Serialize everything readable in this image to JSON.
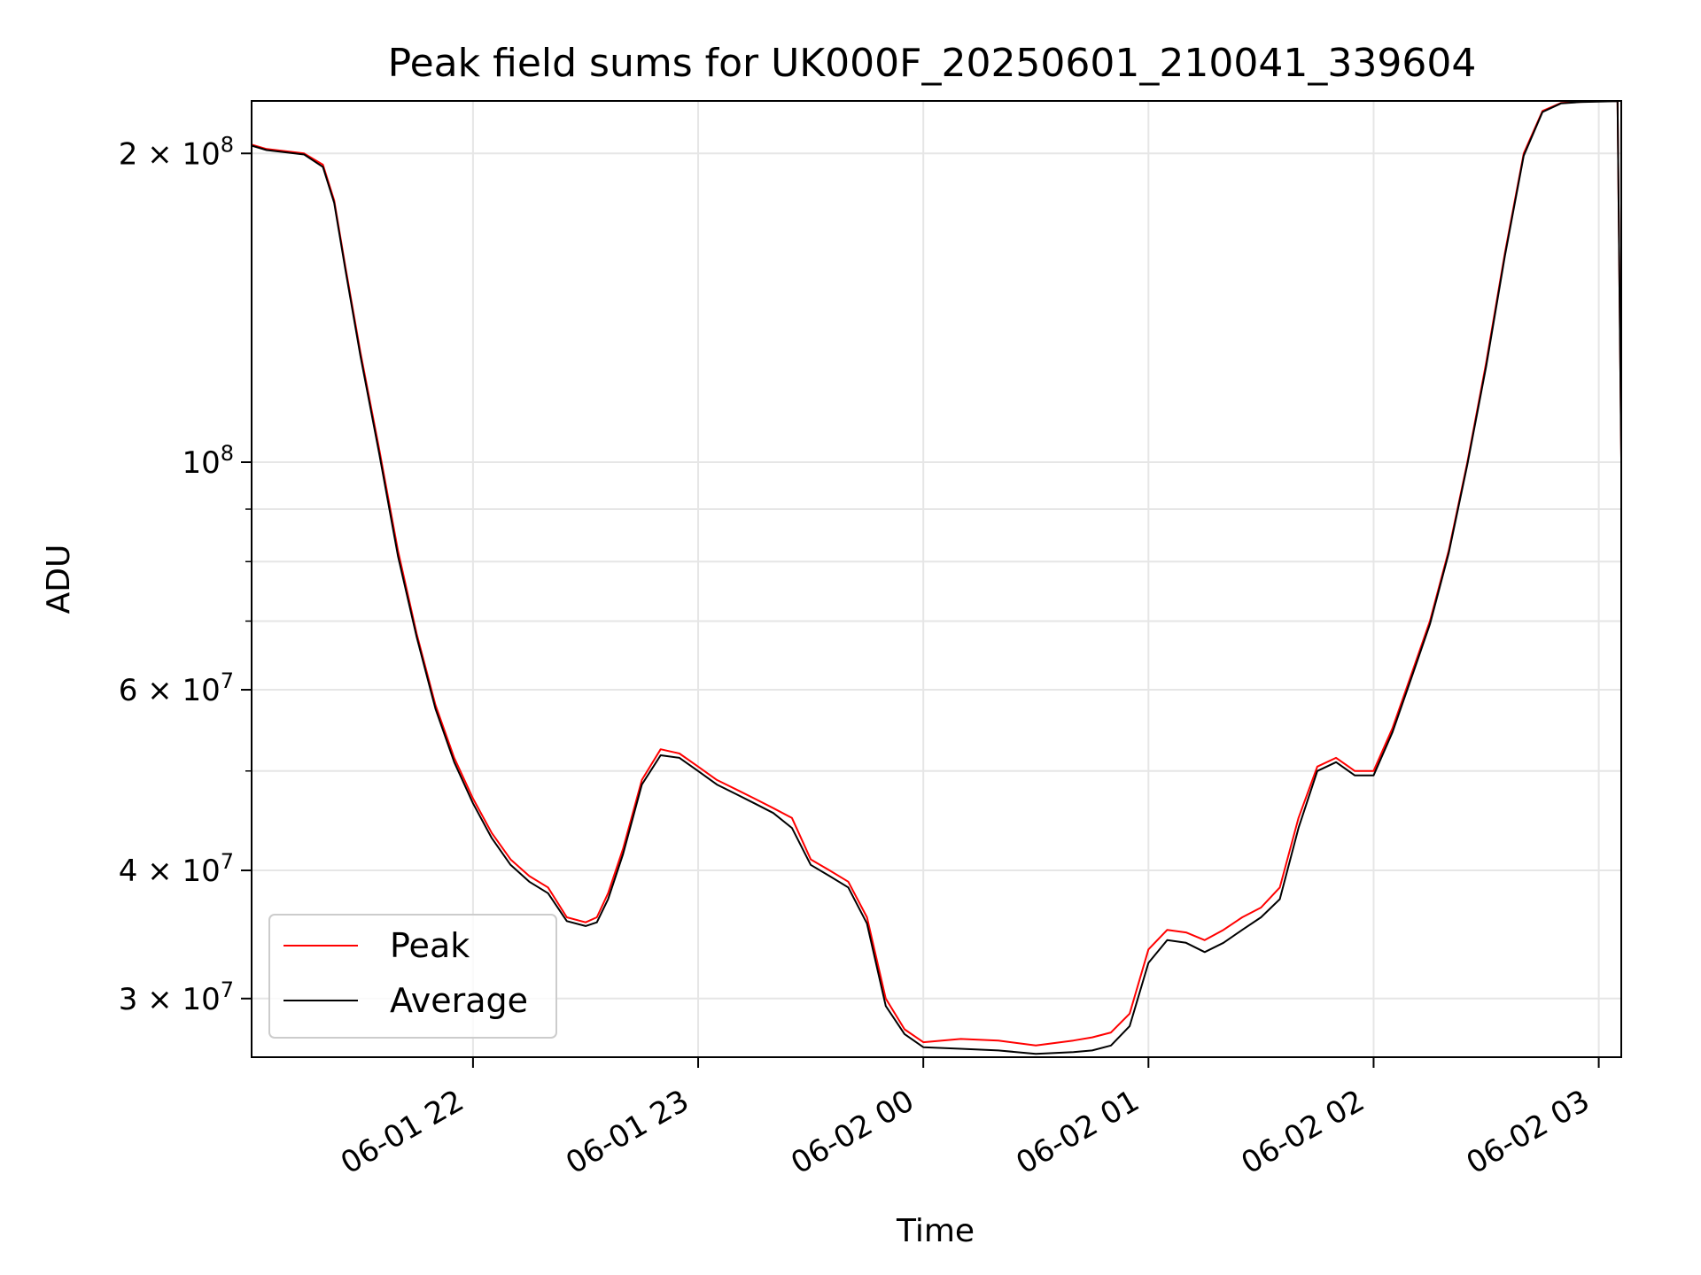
{
  "chart_data": {
    "type": "line",
    "title": "Peak field sums for UK000F_20250601_210041_339604",
    "xlabel": "Time",
    "ylabel": "ADU",
    "yscale": "log",
    "grid": true,
    "legend_position": "lower-left",
    "xlim": [
      "2025-06-01 21:01",
      "2025-06-02 03:06"
    ],
    "ylim": [
      26300000,
      225000000
    ],
    "x_ticks": [
      {
        "value": "2025-06-01 22:00",
        "label": "06-01 22"
      },
      {
        "value": "2025-06-01 23:00",
        "label": "06-01 23"
      },
      {
        "value": "2025-06-02 00:00",
        "label": "06-02 00"
      },
      {
        "value": "2025-06-02 01:00",
        "label": "06-02 01"
      },
      {
        "value": "2025-06-02 02:00",
        "label": "06-02 02"
      },
      {
        "value": "2025-06-02 03:00",
        "label": "06-02 03"
      }
    ],
    "y_ticks": [
      {
        "value": 200000000,
        "base": "2 × 10",
        "exp": "8"
      },
      {
        "value": 100000000,
        "base": "10",
        "exp": "8"
      },
      {
        "value": 60000000,
        "base": "6 × 10",
        "exp": "7"
      },
      {
        "value": 40000000,
        "base": "4 × 10",
        "exp": "7"
      },
      {
        "value": 30000000,
        "base": "3 × 10",
        "exp": "7"
      }
    ],
    "y_minor_ticks": [
      50000000,
      70000000,
      80000000,
      90000000
    ],
    "series": [
      {
        "name": "Peak",
        "color": "#ff0000",
        "x": [
          "2025-06-01 21:01",
          "2025-06-01 21:05",
          "2025-06-01 21:10",
          "2025-06-01 21:15",
          "2025-06-01 21:20",
          "2025-06-01 21:23",
          "2025-06-01 21:26",
          "2025-06-01 21:30",
          "2025-06-01 21:35",
          "2025-06-01 21:40",
          "2025-06-01 21:45",
          "2025-06-01 21:50",
          "2025-06-01 21:55",
          "2025-06-01 22:00",
          "2025-06-01 22:05",
          "2025-06-01 22:10",
          "2025-06-01 22:15",
          "2025-06-01 22:20",
          "2025-06-01 22:25",
          "2025-06-01 22:30",
          "2025-06-01 22:33",
          "2025-06-01 22:36",
          "2025-06-01 22:40",
          "2025-06-01 22:45",
          "2025-06-01 22:50",
          "2025-06-01 22:55",
          "2025-06-01 23:00",
          "2025-06-01 23:05",
          "2025-06-01 23:10",
          "2025-06-01 23:15",
          "2025-06-01 23:20",
          "2025-06-01 23:25",
          "2025-06-01 23:30",
          "2025-06-01 23:35",
          "2025-06-01 23:40",
          "2025-06-01 23:45",
          "2025-06-01 23:50",
          "2025-06-01 23:55",
          "2025-06-02 00:00",
          "2025-06-02 00:10",
          "2025-06-02 00:20",
          "2025-06-02 00:30",
          "2025-06-02 00:40",
          "2025-06-02 00:45",
          "2025-06-02 00:50",
          "2025-06-02 00:55",
          "2025-06-02 01:00",
          "2025-06-02 01:05",
          "2025-06-02 01:10",
          "2025-06-02 01:15",
          "2025-06-02 01:20",
          "2025-06-02 01:25",
          "2025-06-02 01:30",
          "2025-06-02 01:35",
          "2025-06-02 01:40",
          "2025-06-02 01:45",
          "2025-06-02 01:50",
          "2025-06-02 01:55",
          "2025-06-02 02:00",
          "2025-06-02 02:05",
          "2025-06-02 02:10",
          "2025-06-02 02:15",
          "2025-06-02 02:20",
          "2025-06-02 02:25",
          "2025-06-02 02:30",
          "2025-06-02 02:35",
          "2025-06-02 02:40",
          "2025-06-02 02:45",
          "2025-06-02 02:50",
          "2025-06-02 02:55",
          "2025-06-02 03:00",
          "2025-06-02 03:05",
          "2025-06-02 03:06"
        ],
        "values": [
          204000000,
          202000000,
          201000000,
          200000000,
          195000000,
          180000000,
          155000000,
          128000000,
          103000000,
          82000000,
          68000000,
          58000000,
          51500000,
          47000000,
          43500000,
          41000000,
          39500000,
          38500000,
          36000000,
          35600000,
          36000000,
          38000000,
          42000000,
          49000000,
          52500000,
          52000000,
          50500000,
          49000000,
          48000000,
          47000000,
          46000000,
          45000000,
          41000000,
          40000000,
          39000000,
          36000000,
          30000000,
          28000000,
          27200000,
          27400000,
          27300000,
          27000000,
          27300000,
          27500000,
          27800000,
          29000000,
          33500000,
          35000000,
          34800000,
          34200000,
          35000000,
          36000000,
          36800000,
          38500000,
          45000000,
          50500000,
          51500000,
          50000000,
          50000000,
          55000000,
          62000000,
          70000000,
          82000000,
          100000000,
          125000000,
          160000000,
          200000000,
          220000000,
          224000000,
          224500000,
          224800000,
          225000000,
          101000000
        ]
      },
      {
        "name": "Average",
        "color": "#000000",
        "x": [
          "2025-06-01 21:01",
          "2025-06-01 21:05",
          "2025-06-01 21:10",
          "2025-06-01 21:15",
          "2025-06-01 21:20",
          "2025-06-01 21:23",
          "2025-06-01 21:26",
          "2025-06-01 21:30",
          "2025-06-01 21:35",
          "2025-06-01 21:40",
          "2025-06-01 21:45",
          "2025-06-01 21:50",
          "2025-06-01 21:55",
          "2025-06-01 22:00",
          "2025-06-01 22:05",
          "2025-06-01 22:10",
          "2025-06-01 22:15",
          "2025-06-01 22:20",
          "2025-06-01 22:25",
          "2025-06-01 22:30",
          "2025-06-01 22:33",
          "2025-06-01 22:36",
          "2025-06-01 22:40",
          "2025-06-01 22:45",
          "2025-06-01 22:50",
          "2025-06-01 22:55",
          "2025-06-01 23:00",
          "2025-06-01 23:05",
          "2025-06-01 23:10",
          "2025-06-01 23:15",
          "2025-06-01 23:20",
          "2025-06-01 23:25",
          "2025-06-01 23:30",
          "2025-06-01 23:35",
          "2025-06-01 23:40",
          "2025-06-01 23:45",
          "2025-06-01 23:50",
          "2025-06-01 23:55",
          "2025-06-02 00:00",
          "2025-06-02 00:10",
          "2025-06-02 00:20",
          "2025-06-02 00:30",
          "2025-06-02 00:40",
          "2025-06-02 00:45",
          "2025-06-02 00:50",
          "2025-06-02 00:55",
          "2025-06-02 01:00",
          "2025-06-02 01:05",
          "2025-06-02 01:10",
          "2025-06-02 01:15",
          "2025-06-02 01:20",
          "2025-06-02 01:25",
          "2025-06-02 01:30",
          "2025-06-02 01:35",
          "2025-06-02 01:40",
          "2025-06-02 01:45",
          "2025-06-02 01:50",
          "2025-06-02 01:55",
          "2025-06-02 02:00",
          "2025-06-02 02:05",
          "2025-06-02 02:10",
          "2025-06-02 02:15",
          "2025-06-02 02:20",
          "2025-06-02 02:25",
          "2025-06-02 02:30",
          "2025-06-02 02:35",
          "2025-06-02 02:40",
          "2025-06-02 02:45",
          "2025-06-02 02:50",
          "2025-06-02 02:55",
          "2025-06-02 03:00",
          "2025-06-02 03:05",
          "2025-06-02 03:06"
        ],
        "values": [
          203500000,
          201500000,
          200500000,
          199500000,
          194000000,
          179000000,
          154000000,
          127000000,
          102000000,
          81000000,
          67500000,
          57500000,
          51000000,
          46500000,
          43000000,
          40500000,
          39000000,
          38000000,
          35700000,
          35300000,
          35600000,
          37500000,
          41500000,
          48500000,
          51800000,
          51500000,
          50000000,
          48500000,
          47500000,
          46500000,
          45500000,
          44000000,
          40500000,
          39500000,
          38500000,
          35500000,
          29500000,
          27700000,
          26900000,
          26800000,
          26700000,
          26500000,
          26600000,
          26700000,
          27000000,
          28200000,
          32500000,
          34200000,
          34000000,
          33300000,
          34000000,
          35000000,
          36000000,
          37500000,
          44000000,
          50000000,
          51000000,
          49500000,
          49500000,
          54500000,
          61500000,
          69500000,
          81500000,
          99500000,
          124000000,
          159000000,
          199000000,
          219500000,
          223800000,
          224400000,
          224700000,
          224900000,
          101000000
        ]
      }
    ]
  }
}
